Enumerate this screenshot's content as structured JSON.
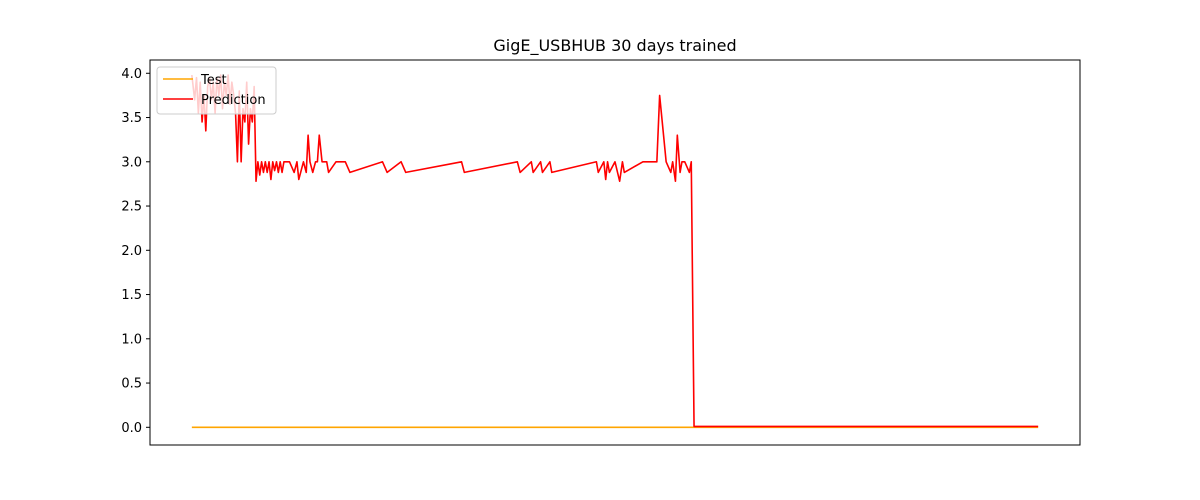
{
  "chart_data": {
    "type": "line",
    "title": "GigE_USBHUB 30 days trained",
    "xlabel": "",
    "ylabel": "",
    "xlim": [
      0,
      1000
    ],
    "ylim": [
      -0.2,
      4.15
    ],
    "x_ticks_visible": false,
    "y_ticks": [
      0.0,
      0.5,
      1.0,
      1.5,
      2.0,
      2.5,
      3.0,
      3.5,
      4.0
    ],
    "y_tick_labels": [
      "0.0",
      "0.5",
      "1.0",
      "1.5",
      "2.0",
      "2.5",
      "3.0",
      "3.5",
      "4.0"
    ],
    "grid": false,
    "legend": {
      "position": "upper-left"
    },
    "series": [
      {
        "name": "Test",
        "color": "#ffa500",
        "x": [
          45,
          955
        ],
        "y": [
          0.0,
          0.0
        ]
      },
      {
        "name": "Prediction",
        "color": "#ff0000",
        "x": [
          45,
          48,
          50,
          52,
          54,
          56,
          58,
          60,
          62,
          64,
          66,
          68,
          70,
          72,
          74,
          76,
          78,
          80,
          82,
          84,
          86,
          88,
          90,
          92,
          94,
          96,
          98,
          100,
          102,
          104,
          106,
          108,
          110,
          112,
          114,
          116,
          118,
          120,
          122,
          124,
          126,
          128,
          130,
          132,
          134,
          136,
          138,
          140,
          142,
          144,
          150,
          155,
          158,
          160,
          165,
          168,
          170,
          172,
          175,
          178,
          180,
          182,
          185,
          188,
          190,
          192,
          200,
          210,
          215,
          250,
          255,
          270,
          275,
          335,
          338,
          395,
          398,
          410,
          412,
          420,
          422,
          430,
          432,
          480,
          482,
          488,
          490,
          492,
          494,
          500,
          505,
          508,
          510,
          530,
          545,
          548,
          555,
          560,
          562,
          565,
          567,
          570,
          572,
          575,
          580,
          582,
          585,
          588,
          600,
          800,
          955
        ],
        "y": [
          3.98,
          3.7,
          3.95,
          3.55,
          3.9,
          3.45,
          3.75,
          3.35,
          3.85,
          3.95,
          3.7,
          3.9,
          3.55,
          3.95,
          3.75,
          3.98,
          3.6,
          3.9,
          3.75,
          3.98,
          3.65,
          3.9,
          3.75,
          3.55,
          3.0,
          3.8,
          3.0,
          3.6,
          3.45,
          3.9,
          3.2,
          3.6,
          3.45,
          3.85,
          2.78,
          3.0,
          2.85,
          3.0,
          2.88,
          3.0,
          2.88,
          3.0,
          2.8,
          3.0,
          2.9,
          3.0,
          2.88,
          3.0,
          2.88,
          3.0,
          3.0,
          2.88,
          3.0,
          2.8,
          3.0,
          2.88,
          3.3,
          3.0,
          2.88,
          3.0,
          3.0,
          3.3,
          3.0,
          3.0,
          3.0,
          2.88,
          3.0,
          3.0,
          2.88,
          3.0,
          2.88,
          3.0,
          2.88,
          3.0,
          2.88,
          3.0,
          2.88,
          3.0,
          2.88,
          3.0,
          2.88,
          3.0,
          2.88,
          3.0,
          2.88,
          3.0,
          2.8,
          3.0,
          2.88,
          3.0,
          2.78,
          3.0,
          2.88,
          3.0,
          3.0,
          3.75,
          3.0,
          2.88,
          3.0,
          2.78,
          3.3,
          2.88,
          3.0,
          3.0,
          2.88,
          3.0,
          0.01,
          0.01,
          0.01,
          0.01,
          0.01
        ]
      }
    ]
  }
}
